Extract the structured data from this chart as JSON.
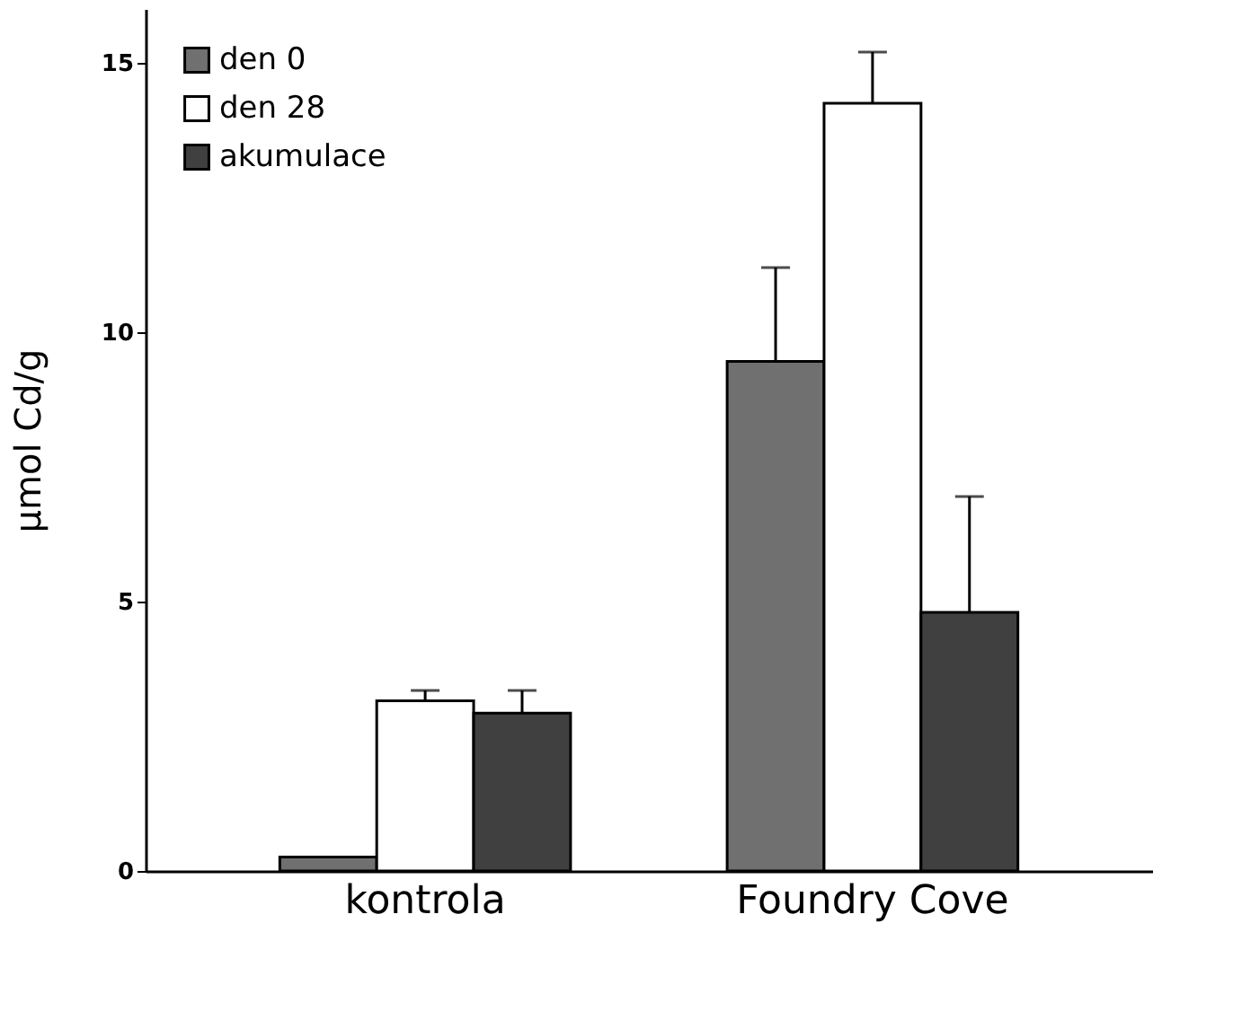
{
  "chart_data": {
    "type": "bar",
    "ylabel": "µmol Cd/g",
    "categories": [
      "kontrola",
      "Foundry Cove"
    ],
    "series": [
      {
        "name": "den 0",
        "color": "#707070",
        "values": [
          0.26,
          9.46
        ],
        "errors": [
          null,
          [
            9.46,
            11.2
          ]
        ]
      },
      {
        "name": "den 28",
        "color": "#ffffff",
        "values": [
          3.16,
          14.25
        ],
        "errors": [
          [
            3.16,
            3.35
          ],
          [
            14.25,
            15.2
          ]
        ]
      },
      {
        "name": "akumulace",
        "color": "#404040",
        "values": [
          2.93,
          4.8
        ],
        "errors": [
          [
            2.93,
            3.35
          ],
          [
            4.8,
            6.95
          ]
        ]
      }
    ],
    "ylim": [
      0,
      16
    ],
    "yticks": [
      0,
      5,
      10,
      15
    ],
    "grid": false,
    "legend": "top left"
  }
}
